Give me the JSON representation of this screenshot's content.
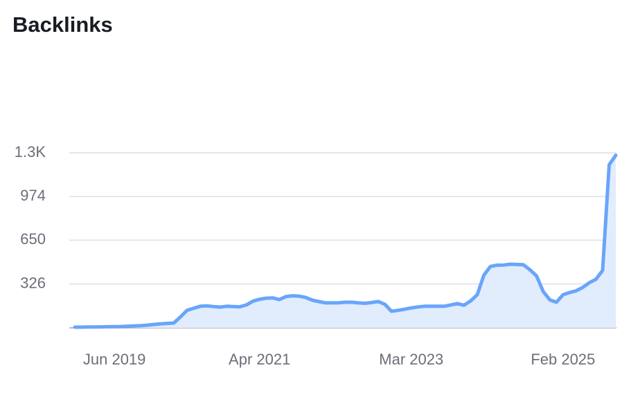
{
  "chart_data": {
    "type": "area",
    "title": "Backlinks",
    "categories": [
      null,
      null,
      null,
      null,
      null,
      null,
      "Jun 2019",
      null,
      null,
      null,
      null,
      null,
      null,
      null,
      null,
      null,
      null,
      null,
      null,
      null,
      null,
      null,
      null,
      null,
      null,
      null,
      null,
      null,
      "Apr 2021",
      null,
      null,
      null,
      null,
      null,
      null,
      null,
      null,
      null,
      null,
      null,
      null,
      null,
      null,
      null,
      null,
      null,
      null,
      null,
      null,
      null,
      null,
      "Mar 2023",
      null,
      null,
      null,
      null,
      null,
      null,
      null,
      null,
      null,
      null,
      null,
      null,
      null,
      null,
      null,
      null,
      null,
      null,
      null,
      null,
      null,
      null,
      "Feb 2025",
      null,
      null,
      null,
      null,
      null,
      null,
      null,
      null
    ],
    "values": [
      5,
      5,
      6,
      6,
      7,
      8,
      9,
      10,
      12,
      14,
      16,
      20,
      25,
      30,
      33,
      36,
      80,
      130,
      145,
      160,
      163,
      158,
      154,
      160,
      158,
      156,
      170,
      198,
      212,
      220,
      222,
      210,
      232,
      238,
      235,
      225,
      205,
      195,
      185,
      185,
      186,
      190,
      190,
      185,
      182,
      188,
      195,
      175,
      123,
      130,
      138,
      148,
      155,
      160,
      160,
      160,
      160,
      170,
      180,
      168,
      200,
      245,
      390,
      455,
      465,
      466,
      472,
      470,
      468,
      430,
      385,
      270,
      208,
      190,
      245,
      262,
      275,
      300,
      335,
      360,
      426,
      1210,
      1280
    ],
    "color": "#69a5fa",
    "fill_color": "#e1ecfd",
    "ylim": [
      0,
      1298
    ],
    "yticks": [
      326,
      650,
      974,
      {
        "value": 1298,
        "label": "1.3K"
      }
    ],
    "grid": true
  }
}
